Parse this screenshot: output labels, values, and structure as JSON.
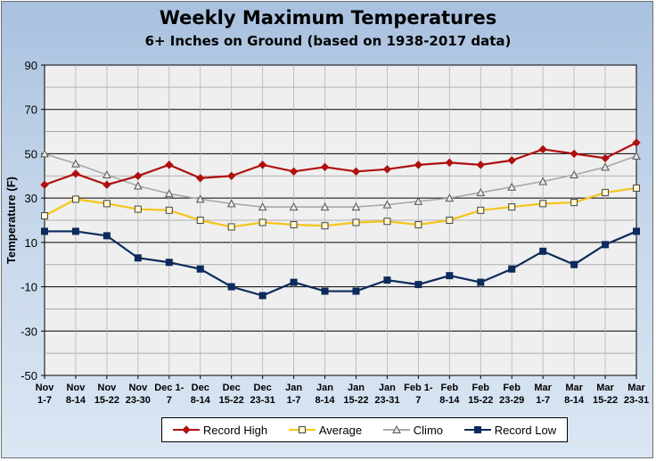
{
  "chart_data": {
    "type": "line",
    "title": "Weekly Maximum Temperatures",
    "subtitle": "6+ Inches on Ground (based on 1938-2017 data)",
    "ylabel": "Temperature (F)",
    "xlabel": "",
    "ylim": [
      -50,
      90
    ],
    "yticks": [
      -50,
      -30,
      -10,
      10,
      30,
      50,
      70,
      90
    ],
    "grid": true,
    "legend_position": "bottom",
    "categories": [
      [
        "Nov",
        "1-7"
      ],
      [
        "Nov",
        "8-14"
      ],
      [
        "Nov",
        "15-22"
      ],
      [
        "Nov",
        "23-30"
      ],
      [
        "Dec 1-",
        "7"
      ],
      [
        "Dec",
        "8-14"
      ],
      [
        "Dec",
        "15-22"
      ],
      [
        "Dec",
        "23-31"
      ],
      [
        "Jan",
        "1-7"
      ],
      [
        "Jan",
        "8-14"
      ],
      [
        "Jan",
        "15-22"
      ],
      [
        "Jan",
        "23-31"
      ],
      [
        "Feb 1-",
        "7"
      ],
      [
        "Feb",
        "8-14"
      ],
      [
        "Feb",
        "15-22"
      ],
      [
        "Feb",
        "23-29"
      ],
      [
        "Mar",
        "1-7"
      ],
      [
        "Mar",
        "8-14"
      ],
      [
        "Mar",
        "15-22"
      ],
      [
        "Mar",
        "23-31"
      ]
    ],
    "series": [
      {
        "name": "Record High",
        "color": "#b01010",
        "marker": "diamond",
        "values": [
          36,
          41,
          36,
          40,
          45,
          39,
          40,
          45,
          42,
          44,
          42,
          43,
          45,
          46,
          45,
          47,
          52,
          50,
          48,
          55
        ]
      },
      {
        "name": "Average",
        "color": "#f5c518",
        "marker": "square-open",
        "values": [
          22,
          29.5,
          27.5,
          25,
          24.5,
          20,
          17,
          19,
          18,
          17.5,
          19,
          19.5,
          18,
          20,
          24.5,
          26,
          27.5,
          28,
          32.5,
          34.5
        ]
      },
      {
        "name": "Climo",
        "color": "#a8a8a8",
        "marker": "triangle-open",
        "values": [
          50,
          45.5,
          40.5,
          35.5,
          32,
          29.5,
          27.5,
          26,
          26,
          26,
          26,
          27,
          28.5,
          30,
          32.5,
          35,
          37.5,
          40.5,
          44,
          49
        ]
      },
      {
        "name": "Record Low",
        "color": "#0c2a5c",
        "marker": "square",
        "values": [
          15,
          15,
          13,
          3,
          1,
          -2,
          -10,
          -14,
          -8,
          -12,
          -12,
          -7,
          -9,
          -5,
          -8,
          -2,
          6,
          0,
          9,
          15
        ]
      }
    ]
  }
}
